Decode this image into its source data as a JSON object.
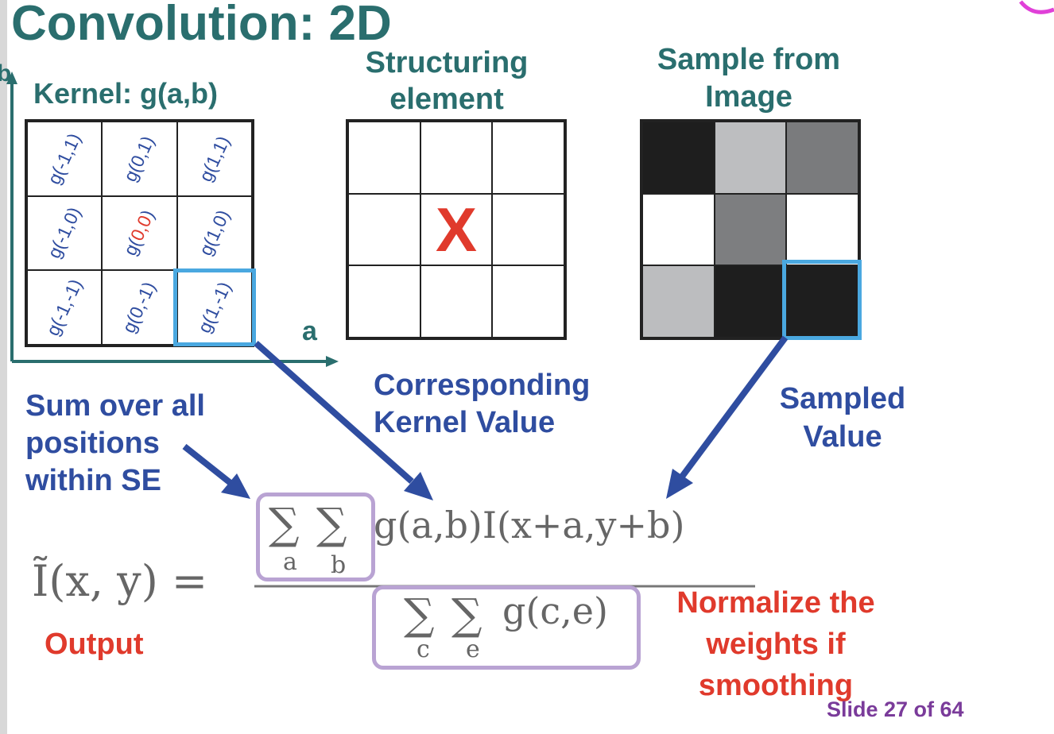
{
  "title": "Convolution: 2D",
  "kernel": {
    "axis_b": "b",
    "axis_a": "a",
    "label": "Kernel: g(a,b)",
    "cells": [
      {
        "pre": "g(-1,1)",
        "mid": "",
        "post": ""
      },
      {
        "pre": "g(0,1)",
        "mid": "",
        "post": ""
      },
      {
        "pre": "g(1,1)",
        "mid": "",
        "post": ""
      },
      {
        "pre": "g(-1,0)",
        "mid": "",
        "post": ""
      },
      {
        "pre": "g(",
        "mid": "0,0",
        "post": ")"
      },
      {
        "pre": "g(1,0)",
        "mid": "",
        "post": ""
      },
      {
        "pre": "g(-1,-1)",
        "mid": "",
        "post": ""
      },
      {
        "pre": "g(0,-1)",
        "mid": "",
        "post": ""
      },
      {
        "pre": "g(1,-1)",
        "mid": "",
        "post": ""
      }
    ]
  },
  "structuring": {
    "title_line1": "Structuring",
    "title_line2": "element",
    "center_mark": "X"
  },
  "sample": {
    "title_line1": "Sample from",
    "title_line2": "Image",
    "cell_colors": [
      "#1e1e1e",
      "#bdbec0",
      "#7a7b7d",
      "#ffffff",
      "#7d7e80",
      "#ffffff",
      "#bcbdbf",
      "#1e1e1e",
      "#1e1e1e"
    ]
  },
  "annotations": {
    "sum_line1": "Sum over all",
    "sum_line2": "positions",
    "sum_line3": "within SE",
    "corr_line1": "Corresponding",
    "corr_line2": "Kernel Value",
    "sampled_line1": "Sampled",
    "sampled_line2": "Value",
    "output": "Output",
    "normalize_line1": "Normalize the",
    "normalize_line2": "weights if",
    "normalize_line3": "smoothing"
  },
  "formula": {
    "lhs": "Ĩ(x, y) =",
    "sum_sym": "∑",
    "idx_a": "a",
    "idx_b": "b",
    "idx_c": "c",
    "idx_e": "e",
    "numerator_term": "g(a,b)I(x+a,y+b)",
    "denominator_term": "g(c,e)"
  },
  "footer": "Slide 27 of 64",
  "colors": {
    "teal": "#2a6e6e",
    "blue": "#2f4da0",
    "red": "#e03a2c",
    "highlight": "#4aa8e0",
    "box": "#b9a3d3",
    "purple": "#7a3b9a"
  }
}
